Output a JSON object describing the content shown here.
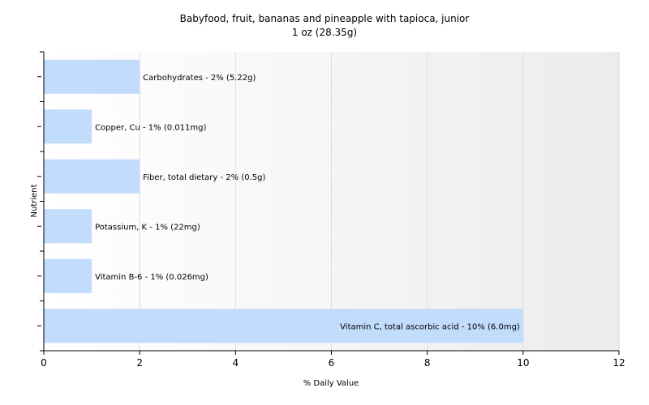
{
  "chart_data": {
    "type": "bar",
    "orientation": "horizontal",
    "title": "Babyfood, fruit, bananas and pineapple with tapioca, junior",
    "subtitle": "1 oz (28.35g)",
    "xlabel": "% Daily Value",
    "ylabel": "Nutrient",
    "xlim": [
      0,
      12
    ],
    "xticks": [
      0,
      2,
      4,
      6,
      8,
      10,
      12
    ],
    "grid": true,
    "bar_color": "#c2dcfc",
    "categories": [
      "Carbohydrates",
      "Copper, Cu",
      "Fiber, total dietary",
      "Potassium, K",
      "Vitamin B-6",
      "Vitamin C, total ascorbic acid"
    ],
    "values": [
      2,
      1,
      2,
      1,
      1,
      10
    ],
    "labels": [
      "Carbohydrates - 2% (5.22g)",
      "Copper, Cu - 1% (0.011mg)",
      "Fiber, total dietary - 2% (0.5g)",
      "Potassium, K - 1% (22mg)",
      "Vitamin B-6 - 1% (0.026mg)",
      "Vitamin C, total ascorbic acid - 10% (6.0mg)"
    ]
  }
}
